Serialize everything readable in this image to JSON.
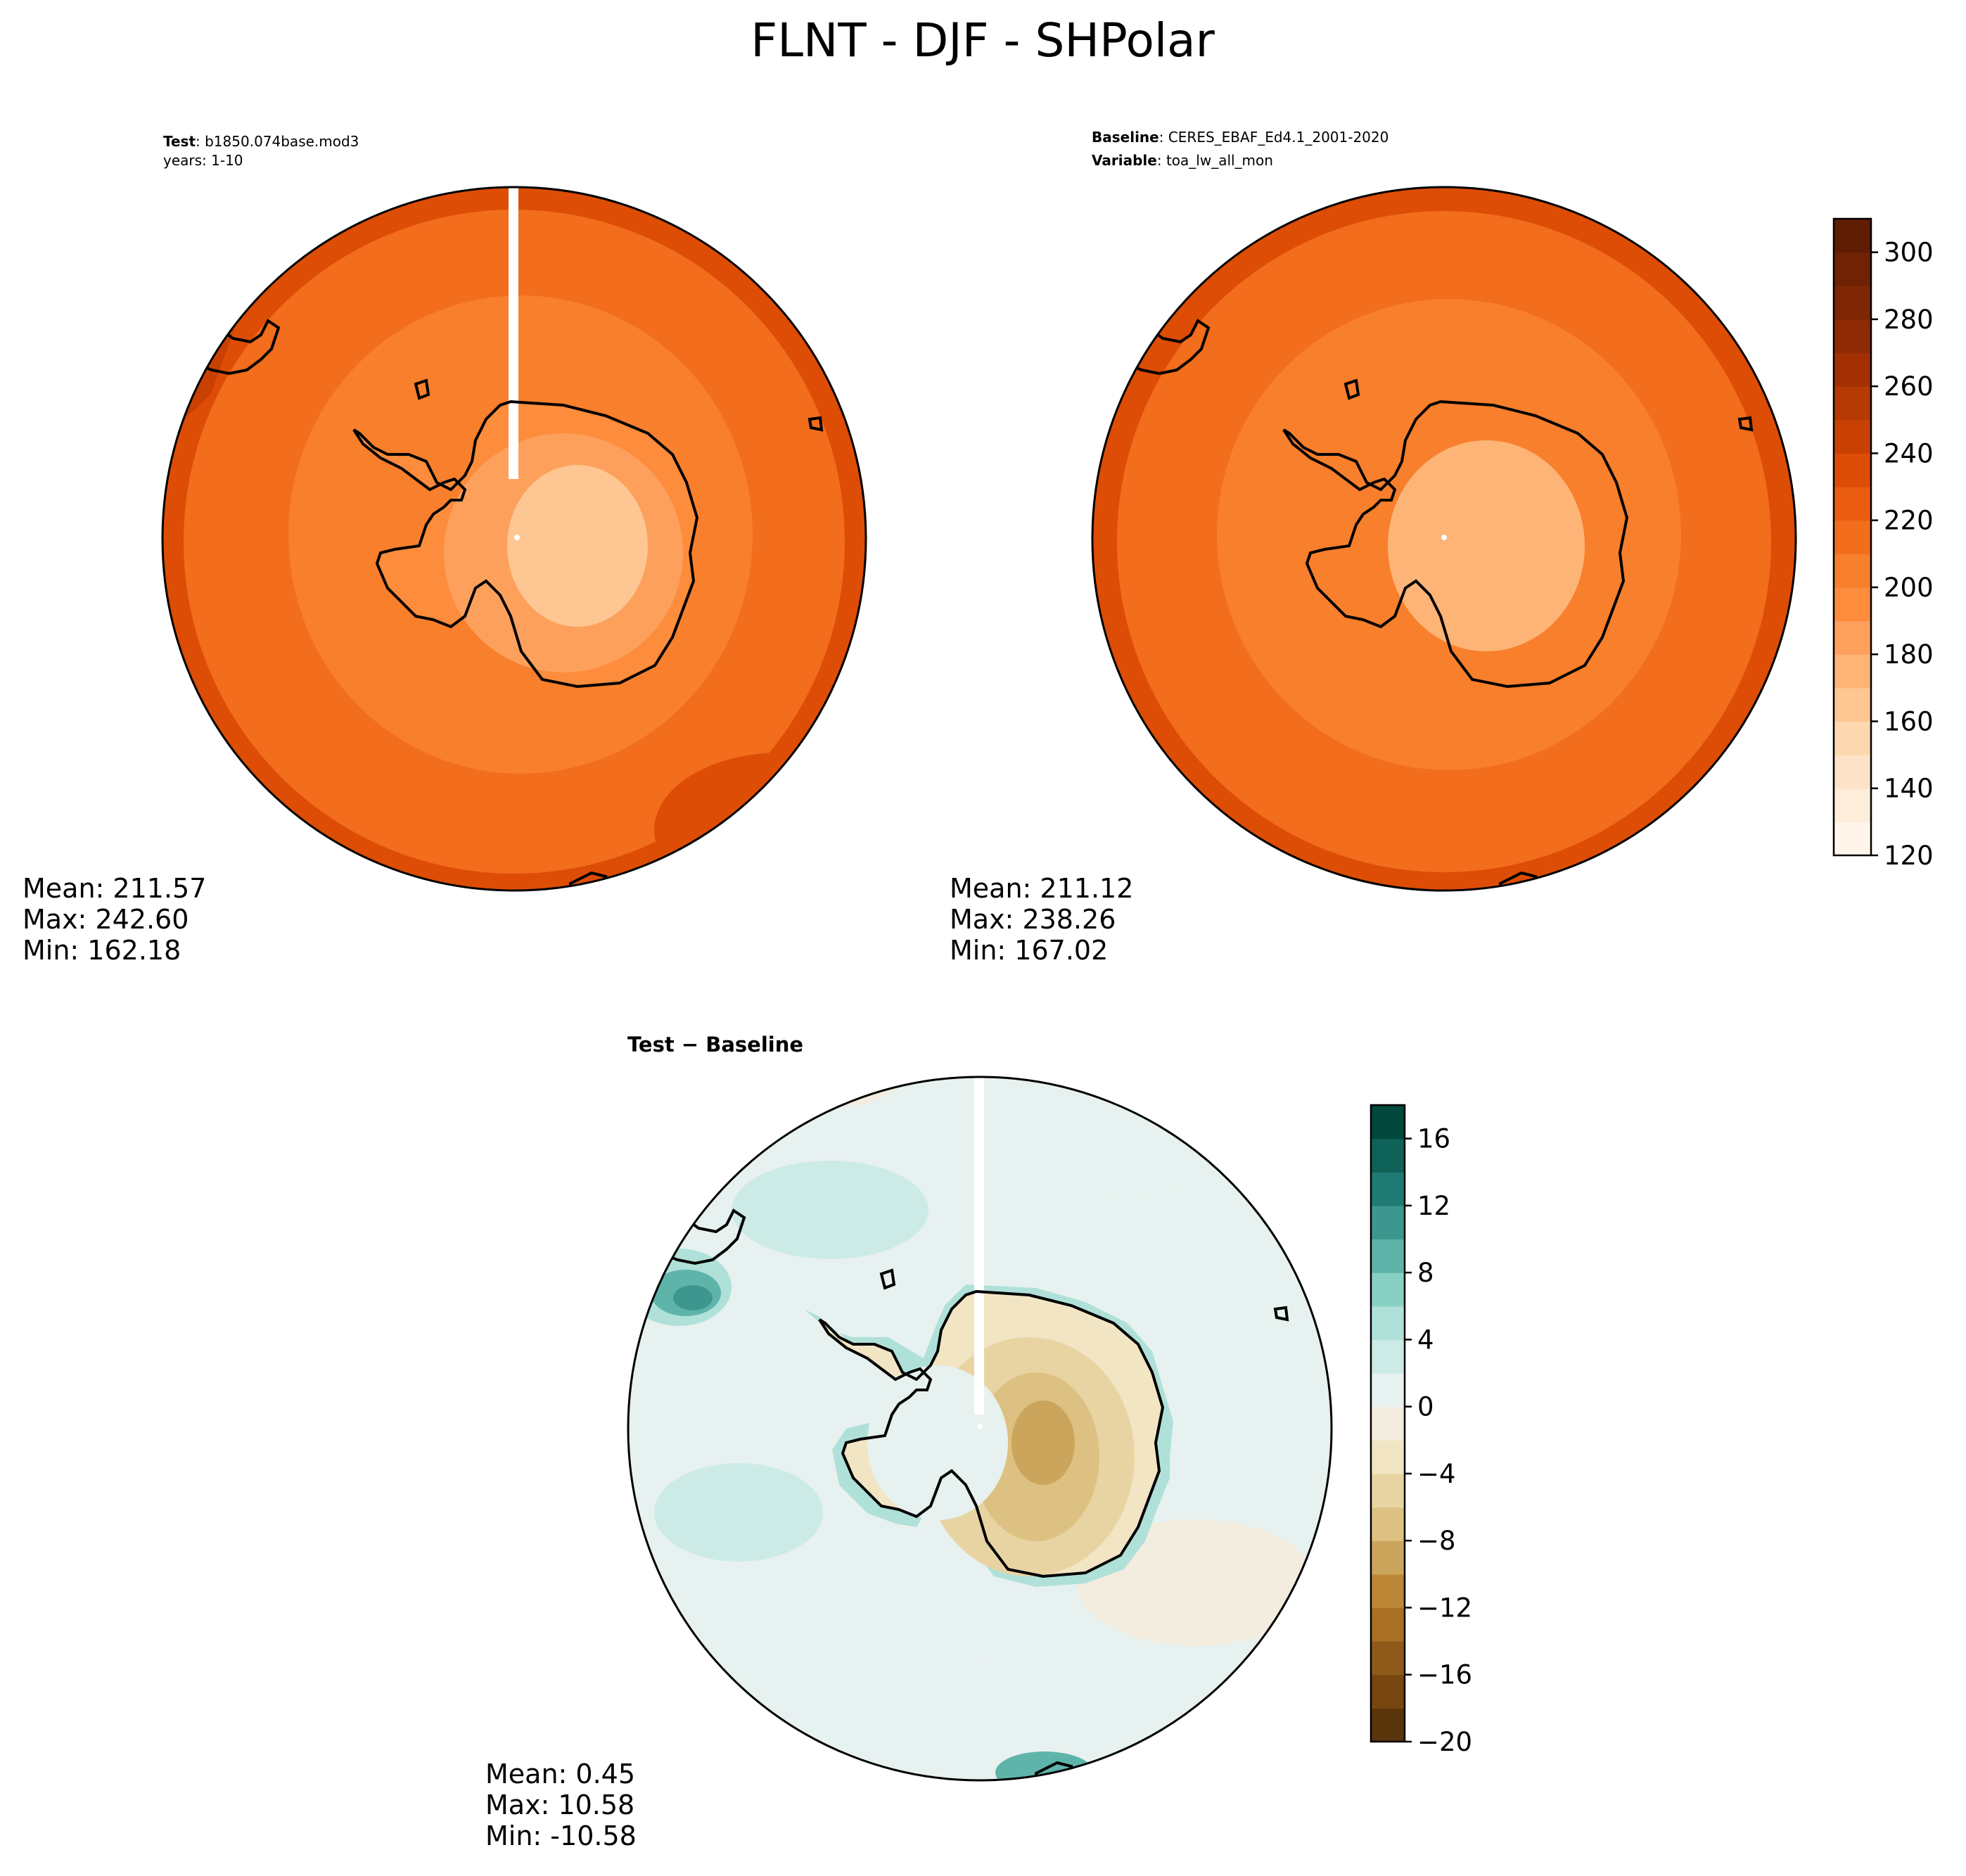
{
  "title": "FLNT - DJF - SHPolar",
  "panels": {
    "test": {
      "label_bold": "Test",
      "label_value": ": b1850.074base.mod3",
      "line2": "years: 1-10",
      "stats": {
        "mean": "Mean: 211.57",
        "max": "Max: 242.60",
        "min": "Min: 162.18"
      }
    },
    "baseline": {
      "label_bold": "Baseline",
      "label_value": ": CERES_EBAF_Ed4.1_2001-2020",
      "line2_bold": "Variable",
      "line2_value": ": toa_lw_all_mon",
      "stats": {
        "mean": "Mean: 211.12",
        "max": "Max: 238.26",
        "min": "Min: 167.02"
      }
    },
    "diff": {
      "title": "Test − Baseline",
      "stats": {
        "mean": "Mean:  0.45",
        "max": "Max: 10.58",
        "min": "Min: -10.58"
      }
    }
  },
  "colorbars": {
    "main": {
      "cmap": "Oranges",
      "ticks": [
        "120",
        "140",
        "160",
        "180",
        "200",
        "220",
        "240",
        "260",
        "280",
        "300"
      ],
      "range": [
        120,
        310
      ],
      "levels": [
        120,
        130,
        140,
        150,
        160,
        170,
        180,
        190,
        200,
        210,
        220,
        230,
        240,
        250,
        260,
        270,
        280,
        290,
        300,
        310
      ],
      "colors": [
        "#fff5eb",
        "#feedda",
        "#fee3c8",
        "#fdd7b0",
        "#fdc692",
        "#fdb476",
        "#fda05c",
        "#fd8d3c",
        "#f87f2c",
        "#f26d1c",
        "#ea5d10",
        "#dd4d06",
        "#c94102",
        "#b53a03",
        "#a33003",
        "#8f2a04",
        "#7f2704",
        "#6f2204",
        "#5e1d03"
      ]
    },
    "diff": {
      "cmap": "BrBG",
      "ticks": [
        "−20",
        "−16",
        "−12",
        "−8",
        "−4",
        "0",
        "4",
        "8",
        "12",
        "16"
      ],
      "range": [
        -20,
        18
      ],
      "levels": [
        -20,
        -18,
        -16,
        -14,
        -12,
        -10,
        -8,
        -6,
        -4,
        -2,
        0,
        2,
        4,
        6,
        8,
        10,
        12,
        14,
        16,
        18
      ],
      "colors": [
        "#5a340a",
        "#774611",
        "#8e5a1a",
        "#a86f25",
        "#bd8738",
        "#cba55c",
        "#ddc182",
        "#e8d4a3",
        "#f1e5c4",
        "#f3ede0",
        "#e7f1ef",
        "#cdebe6",
        "#afe1d9",
        "#88d0c4",
        "#5fb4aa",
        "#3d978e",
        "#1f7b73",
        "#0e6258",
        "#02483c"
      ]
    }
  },
  "map_fields": {
    "test": {
      "outer_band": 236,
      "mid_band": 218,
      "inner_ocean": 207,
      "antarctica_coast": 195,
      "antarctica_plateau": 168,
      "sw_max": 242.6
    },
    "baseline": {
      "outer_band": 232,
      "mid_band": 216,
      "inner_ocean": 205,
      "antarctica_coast": 200,
      "antarctica_plateau": 176,
      "sw_max": 238.3
    },
    "diff": {
      "ocean_background": 1.5,
      "antarctica_center": -7,
      "sw_max": 10.6,
      "coast_ring": 4.5
    }
  }
}
